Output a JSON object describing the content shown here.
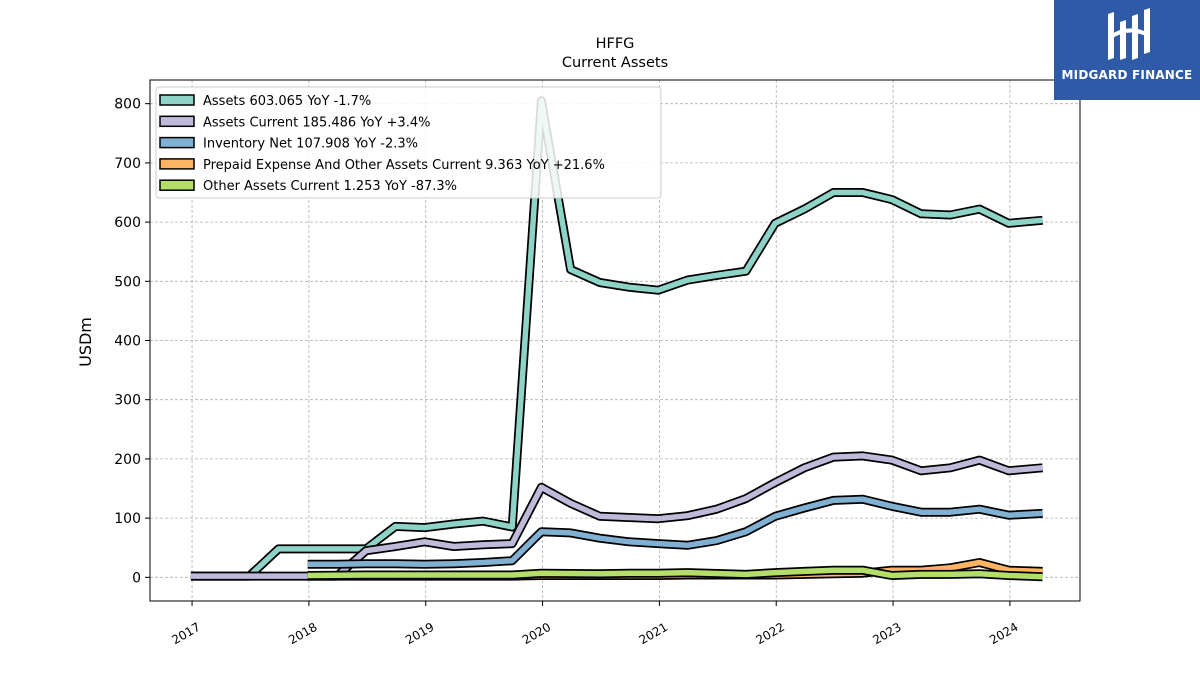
{
  "logo": {
    "text": "MIDGARD FINANCE",
    "background": "#2f5aa8"
  },
  "chart_data": {
    "type": "line",
    "title": "HFFG",
    "subtitle": "Current  Assets",
    "ylabel": "USDm",
    "xlabel": "",
    "xlim": [
      2016.64,
      2024.6
    ],
    "ylim": [
      -40,
      840
    ],
    "yticks": [
      0,
      100,
      200,
      300,
      400,
      500,
      600,
      700,
      800
    ],
    "xtick_labels": [
      "2017",
      "2018",
      "2019",
      "2020",
      "2021",
      "2022",
      "2023",
      "2024"
    ],
    "grid": true,
    "legend_position": "top-left",
    "series": [
      {
        "name": "Assets",
        "legend": "Assets  603.065 YoY -1.7%",
        "color": "#8dd3c7",
        "x": [
          2016.99,
          2017.49,
          2017.74,
          2017.99,
          2018.24,
          2018.49,
          2018.74,
          2018.99,
          2019.24,
          2019.49,
          2019.74,
          2019.99,
          2020.24,
          2020.49,
          2020.74,
          2020.99,
          2021.24,
          2021.49,
          2021.74,
          2021.99,
          2022.24,
          2022.49,
          2022.74,
          2022.99,
          2023.24,
          2023.49,
          2023.74,
          2023.99,
          2024.28
        ],
        "y": [
          2,
          2,
          48,
          48,
          48,
          48,
          86,
          84,
          90,
          95,
          85,
          805,
          520,
          498,
          490,
          485,
          502,
          510,
          517,
          598,
          622,
          650,
          650,
          638,
          614,
          612,
          622,
          598,
          603
        ]
      },
      {
        "name": "Assets Current",
        "legend": "Assets Current  185.486 YoY +3.4%",
        "color": "#bebada",
        "x": [
          2016.99,
          2017.49,
          2017.99,
          2018.24,
          2018.49,
          2018.74,
          2018.99,
          2019.24,
          2019.49,
          2019.74,
          2019.99,
          2020.24,
          2020.49,
          2020.74,
          2020.99,
          2021.24,
          2021.49,
          2021.74,
          2021.99,
          2022.24,
          2022.49,
          2022.74,
          2022.99,
          2023.24,
          2023.49,
          2023.74,
          2023.99,
          2024.28
        ],
        "y": [
          2,
          2,
          2,
          2,
          45,
          52,
          60,
          52,
          55,
          57,
          152,
          125,
          103,
          101,
          99,
          104,
          115,
          133,
          160,
          185,
          203,
          205,
          198,
          180,
          185,
          198,
          180,
          185
        ]
      },
      {
        "name": "Inventory Net",
        "legend": "Inventory Net  107.908 YoY -2.3%",
        "color": "#80b1d3",
        "x": [
          2017.99,
          2018.24,
          2018.49,
          2018.74,
          2018.99,
          2019.24,
          2019.49,
          2019.74,
          2019.99,
          2020.24,
          2020.49,
          2020.74,
          2020.99,
          2021.24,
          2021.49,
          2021.74,
          2021.99,
          2022.24,
          2022.49,
          2022.74,
          2022.99,
          2023.24,
          2023.49,
          2023.74,
          2023.99,
          2024.28
        ],
        "y": [
          22,
          22,
          23,
          23,
          22,
          23,
          25,
          28,
          77,
          75,
          66,
          60,
          57,
          54,
          62,
          77,
          103,
          117,
          130,
          132,
          120,
          110,
          110,
          115,
          105,
          108
        ]
      },
      {
        "name": "Prepaid Expense And Other Assets Current",
        "legend": "Prepaid Expense And Other Assets Current  9.363 YoY +21.6%",
        "color": "#fdb462",
        "x": [
          2017.99,
          2018.49,
          2018.99,
          2019.49,
          2019.74,
          2019.99,
          2020.49,
          2020.99,
          2021.24,
          2021.74,
          2021.99,
          2022.24,
          2022.49,
          2022.74,
          2022.99,
          2023.24,
          2023.49,
          2023.74,
          2023.99,
          2024.28
        ],
        "y": [
          2,
          2,
          2,
          2,
          2,
          3,
          3,
          3,
          4,
          4,
          4,
          5,
          6,
          7,
          12,
          12,
          16,
          25,
          12,
          10
        ]
      },
      {
        "name": "Other Assets Current",
        "legend": "Other Assets Current  1.253 YoY -87.3%",
        "color": "#b3de69",
        "x": [
          2017.99,
          2018.49,
          2018.99,
          2019.49,
          2019.74,
          2019.99,
          2020.49,
          2020.74,
          2020.99,
          2021.24,
          2021.74,
          2021.99,
          2022.24,
          2022.49,
          2022.74,
          2022.99,
          2023.24,
          2023.49,
          2023.74,
          2023.99,
          2024.28
        ],
        "y": [
          3,
          4,
          4,
          4,
          4,
          7,
          6,
          7,
          7,
          8,
          5,
          8,
          10,
          12,
          12,
          3,
          5,
          5,
          6,
          3,
          1
        ]
      }
    ]
  }
}
